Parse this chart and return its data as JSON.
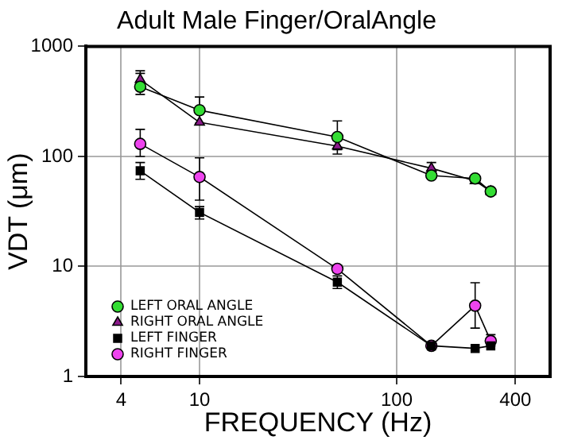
{
  "chart_data": {
    "type": "line",
    "title": "Adult Male Finger/OralAngle",
    "xlabel": "FREQUENCY (Hz)",
    "ylabel": "VDT (μm)",
    "log": "xy",
    "xlim": [
      2.65,
      600
    ],
    "xticks": [
      4,
      10,
      100,
      400
    ],
    "ylim": [
      1,
      1000
    ],
    "yticks": [
      1,
      10,
      100,
      1000
    ],
    "grid": true,
    "legend": "bottom left",
    "line_style": "solid",
    "series": [
      {
        "name": "LEFT ORAL ANGLE",
        "color": "#33dd33",
        "marker": "circle",
        "x": [
          5,
          10,
          50,
          150,
          250,
          300
        ],
        "values": [
          430,
          263,
          150,
          67,
          63,
          48
        ],
        "errors": [
          [
            366,
            569
          ],
          [
            200,
            347
          ],
          [
            115,
            210
          ],
          null,
          null,
          null
        ]
      },
      {
        "name": "RIGHT ORAL ANGLE",
        "color": "#8b1a8b",
        "marker": "triangle",
        "x": [
          5,
          10,
          50,
          150,
          250,
          300
        ],
        "values": [
          500,
          204,
          124,
          78,
          60,
          48
        ],
        "errors": [
          [
            420,
            600
          ],
          null,
          [
            105,
            140
          ],
          [
            68,
            88
          ],
          null,
          null
        ]
      },
      {
        "name": "LEFT FINGER",
        "color": "#000000",
        "marker": "square",
        "x": [
          5,
          10,
          50,
          150,
          250,
          300
        ],
        "values": [
          74,
          31,
          7.2,
          1.9,
          1.8,
          1.9
        ],
        "errors": [
          [
            62,
            88
          ],
          [
            27,
            35
          ],
          [
            6.3,
            8.2
          ],
          null,
          null,
          null
        ]
      },
      {
        "name": "RIGHT FINGER",
        "color": "#ee44ee",
        "marker": "circle",
        "x": [
          5,
          10,
          50,
          150,
          250,
          300
        ],
        "values": [
          130,
          65,
          9.5,
          1.9,
          4.4,
          2.1
        ],
        "errors": [
          [
            100,
            176
          ],
          [
            40,
            97
          ],
          [
            8.8,
            10.3
          ],
          null,
          [
            2.75,
            7.1
          ],
          [
            1.9,
            2.4
          ]
        ]
      }
    ]
  }
}
